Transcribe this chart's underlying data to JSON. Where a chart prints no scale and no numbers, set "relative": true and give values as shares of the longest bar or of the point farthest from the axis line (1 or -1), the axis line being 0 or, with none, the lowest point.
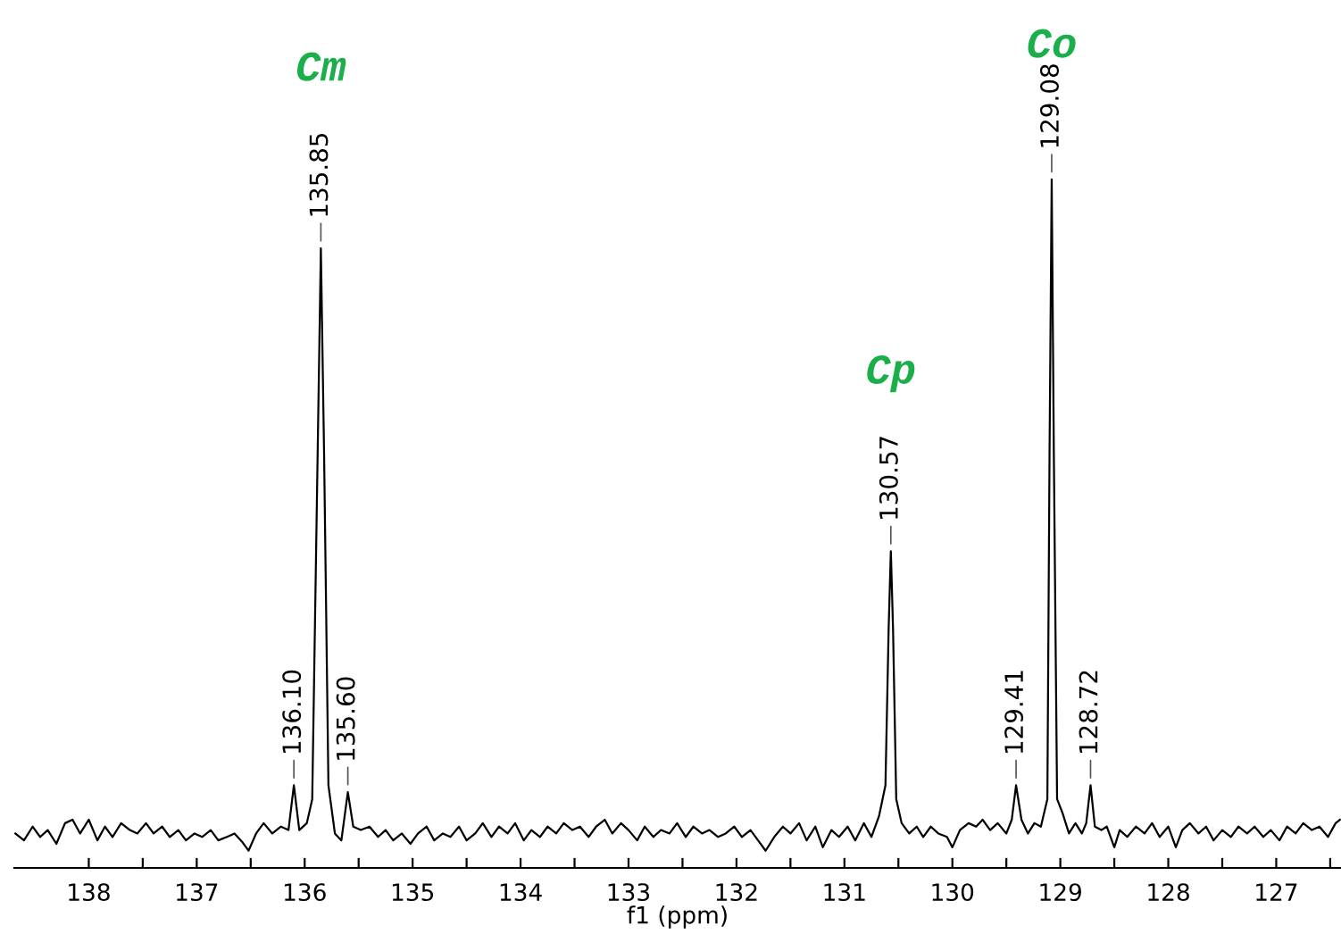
{
  "chart_data": {
    "type": "line",
    "relative": true,
    "xlabel": "f1 (ppm)",
    "xlim": [
      138.69,
      126.4
    ],
    "xticks": [
      138,
      {
        "value": 137.5,
        "label": null
      },
      137,
      {
        "value": 136.5,
        "label": null
      },
      136,
      {
        "value": 135.5,
        "label": null
      },
      135,
      {
        "value": 134.5,
        "label": null
      },
      134,
      {
        "value": 133.5,
        "label": null
      },
      133,
      {
        "value": 132.5,
        "label": null
      },
      132,
      {
        "value": 131.5,
        "label": null
      },
      131,
      {
        "value": 130.5,
        "label": null
      },
      130,
      {
        "value": 129.5,
        "label": null
      },
      129,
      {
        "value": 128.5,
        "label": null
      },
      128,
      {
        "value": 127.5,
        "label": null
      },
      127,
      {
        "value": 126.5,
        "label": null
      }
    ],
    "grid": false,
    "legend": false,
    "marker": "none",
    "line_style": "solid",
    "series": [
      {
        "color": "#000000",
        "x": [
          138.68,
          138.6,
          138.52,
          138.45,
          138.38,
          138.3,
          138.22,
          138.15,
          138.08,
          138.0,
          137.92,
          137.85,
          137.78,
          137.7,
          137.62,
          137.55,
          137.47,
          137.4,
          137.32,
          137.25,
          137.17,
          137.1,
          137.02,
          136.95,
          136.87,
          136.8,
          136.72,
          136.65,
          136.58,
          136.52,
          136.45,
          136.38,
          136.3,
          136.22,
          136.15,
          136.1,
          136.05,
          135.98,
          135.93,
          135.88,
          135.85,
          135.82,
          135.78,
          135.72,
          135.66,
          135.6,
          135.55,
          135.48,
          135.4,
          135.32,
          135.25,
          135.18,
          135.1,
          135.02,
          134.95,
          134.87,
          134.8,
          134.72,
          134.65,
          134.57,
          134.5,
          134.42,
          134.35,
          134.27,
          134.2,
          134.12,
          134.05,
          133.97,
          133.9,
          133.82,
          133.75,
          133.67,
          133.6,
          133.52,
          133.45,
          133.37,
          133.3,
          133.22,
          133.15,
          133.07,
          133.0,
          132.92,
          132.85,
          132.77,
          132.7,
          132.62,
          132.55,
          132.47,
          132.4,
          132.32,
          132.25,
          132.17,
          132.1,
          132.02,
          131.95,
          131.87,
          131.8,
          131.73,
          131.65,
          131.57,
          131.5,
          131.42,
          131.35,
          131.27,
          131.2,
          131.12,
          131.05,
          130.97,
          130.9,
          130.82,
          130.75,
          130.68,
          130.62,
          130.59,
          130.57,
          130.55,
          130.52,
          130.47,
          130.4,
          130.33,
          130.27,
          130.2,
          130.13,
          130.05,
          130.0,
          129.93,
          129.85,
          129.78,
          129.72,
          129.65,
          129.58,
          129.5,
          129.45,
          129.41,
          129.36,
          129.3,
          129.24,
          129.18,
          129.12,
          129.1,
          129.08,
          129.06,
          129.03,
          128.98,
          128.92,
          128.86,
          128.8,
          128.76,
          128.72,
          128.68,
          128.62,
          128.57,
          128.5,
          128.45,
          128.38,
          128.3,
          128.22,
          128.15,
          128.08,
          128.0,
          127.93,
          127.87,
          127.8,
          127.72,
          127.65,
          127.58,
          127.5,
          127.42,
          127.35,
          127.27,
          127.2,
          127.12,
          127.05,
          126.97,
          126.9,
          126.82,
          126.75,
          126.67,
          126.6,
          126.52,
          126.45,
          126.41
        ],
        "values": [
          0.05,
          0.04,
          0.06,
          0.045,
          0.055,
          0.035,
          0.065,
          0.07,
          0.05,
          0.07,
          0.04,
          0.06,
          0.045,
          0.065,
          0.055,
          0.05,
          0.065,
          0.05,
          0.06,
          0.045,
          0.055,
          0.04,
          0.05,
          0.045,
          0.055,
          0.04,
          0.045,
          0.05,
          0.038,
          0.025,
          0.05,
          0.065,
          0.05,
          0.06,
          0.055,
          0.12,
          0.055,
          0.065,
          0.1,
          0.6,
          0.9,
          0.6,
          0.12,
          0.05,
          0.04,
          0.11,
          0.06,
          0.055,
          0.06,
          0.045,
          0.055,
          0.04,
          0.05,
          0.035,
          0.05,
          0.06,
          0.04,
          0.05,
          0.045,
          0.06,
          0.04,
          0.05,
          0.065,
          0.045,
          0.06,
          0.05,
          0.065,
          0.04,
          0.055,
          0.045,
          0.06,
          0.05,
          0.065,
          0.055,
          0.06,
          0.045,
          0.06,
          0.07,
          0.05,
          0.065,
          0.055,
          0.04,
          0.06,
          0.045,
          0.055,
          0.05,
          0.065,
          0.045,
          0.06,
          0.05,
          0.055,
          0.045,
          0.05,
          0.06,
          0.045,
          0.055,
          0.04,
          0.025,
          0.045,
          0.06,
          0.05,
          0.065,
          0.04,
          0.06,
          0.03,
          0.055,
          0.045,
          0.06,
          0.04,
          0.065,
          0.045,
          0.075,
          0.12,
          0.35,
          0.46,
          0.35,
          0.1,
          0.065,
          0.05,
          0.06,
          0.045,
          0.06,
          0.05,
          0.045,
          0.03,
          0.055,
          0.065,
          0.06,
          0.07,
          0.055,
          0.065,
          0.05,
          0.07,
          0.12,
          0.07,
          0.05,
          0.065,
          0.06,
          0.1,
          0.6,
          1,
          0.6,
          0.1,
          0.08,
          0.05,
          0.065,
          0.05,
          0.065,
          0.12,
          0.06,
          0.055,
          0.06,
          0.03,
          0.055,
          0.045,
          0.06,
          0.05,
          0.065,
          0.045,
          0.06,
          0.03,
          0.055,
          0.065,
          0.05,
          0.06,
          0.04,
          0.055,
          0.045,
          0.06,
          0.05,
          0.06,
          0.045,
          0.055,
          0.04,
          0.06,
          0.05,
          0.065,
          0.055,
          0.06,
          0.045,
          0.065,
          0.07
        ]
      }
    ],
    "annotations": [
      {
        "text": "136.10",
        "x": 136.1,
        "y": 0.12
      },
      {
        "text": "135.85",
        "x": 135.85,
        "y": 0.9
      },
      {
        "text": "135.60",
        "x": 135.6,
        "y": 0.11
      },
      {
        "text": "130.57",
        "x": 130.57,
        "y": 0.46
      },
      {
        "text": "129.41",
        "x": 129.41,
        "y": 0.12
      },
      {
        "text": "129.08",
        "x": 129.08,
        "y": 1
      },
      {
        "text": "128.72",
        "x": 128.72,
        "y": 0.12
      },
      "Cm",
      "Cp",
      "Co"
    ]
  }
}
